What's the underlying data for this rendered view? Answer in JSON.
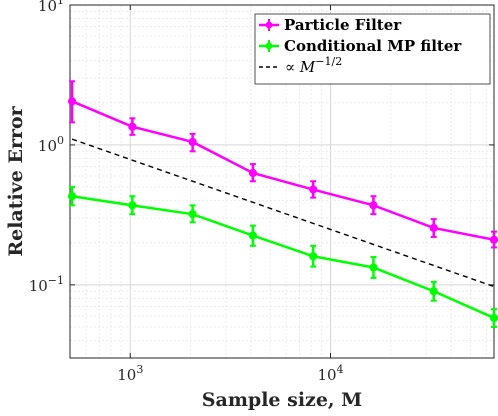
{
  "chart_data": {
    "type": "line",
    "xscale": "log",
    "yscale": "log",
    "xlim": [
      500,
      65536
    ],
    "ylim": [
      0.03,
      10
    ],
    "xlabel": "Sample size, M",
    "ylabel": "Relative Error",
    "grid": true,
    "legend_position": "top-right",
    "x": [
      512,
      1024,
      2048,
      4096,
      8192,
      16384,
      32768,
      65536
    ],
    "x_ticks": [
      {
        "base": "10",
        "exp": "3",
        "value": 1000
      },
      {
        "base": "10",
        "exp": "4",
        "value": 10000
      }
    ],
    "y_ticks": [
      {
        "base": "10",
        "exp": "−1",
        "value": 0.1
      },
      {
        "base": "10",
        "exp": "0",
        "value": 1
      },
      {
        "base": "10",
        "exp": "1",
        "value": 10
      }
    ],
    "series": [
      {
        "name": "Particle Filter",
        "color": "#ff00ff",
        "values": [
          2.05,
          1.35,
          1.05,
          0.63,
          0.48,
          0.37,
          0.255,
          0.21
        ],
        "err_low": [
          1.45,
          1.18,
          0.9,
          0.55,
          0.42,
          0.32,
          0.22,
          0.185
        ],
        "err_high": [
          2.85,
          1.55,
          1.2,
          0.73,
          0.55,
          0.43,
          0.295,
          0.24
        ]
      },
      {
        "name": "Conditional MP filter",
        "color": "#00ff00",
        "values": [
          0.43,
          0.37,
          0.32,
          0.225,
          0.16,
          0.133,
          0.09,
          0.058
        ],
        "err_low": [
          0.37,
          0.32,
          0.28,
          0.19,
          0.135,
          0.112,
          0.077,
          0.05
        ],
        "err_high": [
          0.5,
          0.43,
          0.37,
          0.265,
          0.19,
          0.158,
          0.105,
          0.067
        ]
      }
    ],
    "reference_line": {
      "label_prefix": "∝",
      "label_var": "M",
      "label_exp": "−1/2",
      "style": "dashed",
      "color": "#000000",
      "x": [
        512,
        65536
      ],
      "values": [
        1.1,
        0.0972
      ]
    }
  }
}
